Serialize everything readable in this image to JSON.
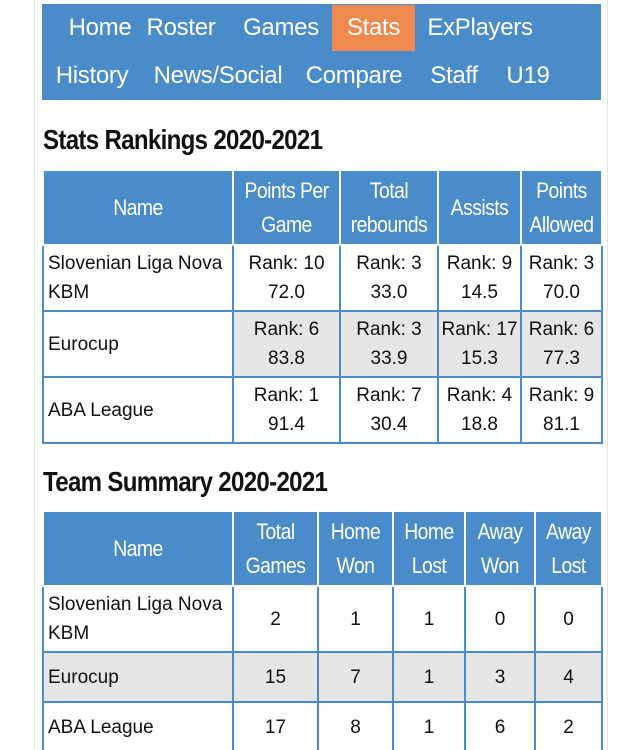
{
  "nav": {
    "row1": [
      "Home",
      "Roster",
      "Games",
      "Stats",
      "ExPlayers"
    ],
    "row2": [
      "History",
      "News/Social",
      "Compare",
      "Staff",
      "U19"
    ],
    "active": "Stats"
  },
  "rankings": {
    "title": "Stats Rankings 2020-2021",
    "headers": {
      "name": "Name",
      "ppg": [
        "Points Per",
        "Game"
      ],
      "reb": [
        "Total",
        "rebounds"
      ],
      "ast": "Assists",
      "pa": [
        "Points",
        "Allowed"
      ]
    },
    "rows": [
      {
        "name": [
          "Slovenian Liga Nova",
          "KBM"
        ],
        "ppg": [
          "Rank: 10",
          "72.0"
        ],
        "reb": [
          "Rank: 3",
          "33.0"
        ],
        "ast": [
          "Rank: 9",
          "14.5"
        ],
        "pa": [
          "Rank: 3",
          "70.0"
        ]
      },
      {
        "name": [
          "Eurocup"
        ],
        "ppg": [
          "Rank: 6",
          "83.8"
        ],
        "reb": [
          "Rank: 3",
          "33.9"
        ],
        "ast": [
          "Rank: 17",
          "15.3"
        ],
        "pa": [
          "Rank: 6",
          "77.3"
        ]
      },
      {
        "name": [
          "ABA League"
        ],
        "ppg": [
          "Rank: 1",
          "91.4"
        ],
        "reb": [
          "Rank: 7",
          "30.4"
        ],
        "ast": [
          "Rank: 4",
          "18.8"
        ],
        "pa": [
          "Rank: 9",
          "81.1"
        ]
      }
    ]
  },
  "summary": {
    "title": "Team Summary 2020-2021",
    "headers": {
      "name": "Name",
      "games": [
        "Total",
        "Games"
      ],
      "hw": [
        "Home",
        "Won"
      ],
      "hl": [
        "Home",
        "Lost"
      ],
      "aw": [
        "Away",
        "Won"
      ],
      "al": [
        "Away",
        "Lost"
      ]
    },
    "rows": [
      {
        "name": [
          "Slovenian Liga Nova",
          "KBM"
        ],
        "games": "2",
        "hw": "1",
        "hl": "1",
        "aw": "0",
        "al": "0"
      },
      {
        "name": [
          "Eurocup"
        ],
        "games": "15",
        "hw": "7",
        "hl": "1",
        "aw": "3",
        "al": "4"
      },
      {
        "name": [
          "ABA League"
        ],
        "games": "17",
        "hw": "8",
        "hl": "1",
        "aw": "6",
        "al": "2"
      }
    ]
  }
}
